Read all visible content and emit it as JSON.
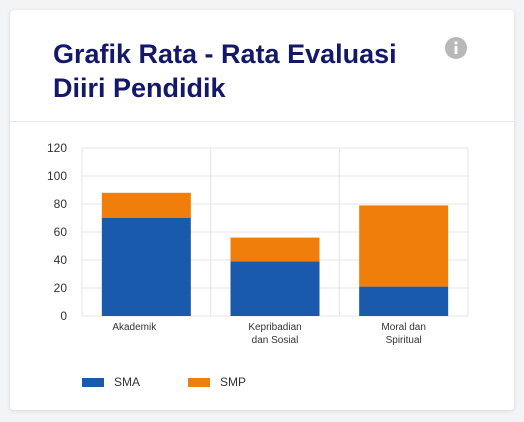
{
  "card": {
    "title": "Grafik Rata - Rata Evaluasi Diiri Pendidik",
    "info_icon": "info-icon"
  },
  "chart_data": {
    "type": "bar",
    "stacked": true,
    "categories": [
      [
        "Akademik"
      ],
      [
        "Kepribadian",
        "dan Sosial"
      ],
      [
        "Moral dan",
        "Spiritual"
      ]
    ],
    "series": [
      {
        "name": "SMA",
        "color": "#1a5aad",
        "values": [
          70,
          39,
          21
        ]
      },
      {
        "name": "SMP",
        "color": "#f07e0b",
        "values": [
          18,
          17,
          58
        ]
      }
    ],
    "ylim": [
      0,
      120
    ],
    "yticks": [
      0,
      20,
      40,
      60,
      80,
      100,
      120
    ],
    "grid": true,
    "legend_position": "bottom-left"
  },
  "colors": {
    "title": "#13186a",
    "info_icon": "#b8b8b8",
    "grid": "#e4e4e4"
  }
}
